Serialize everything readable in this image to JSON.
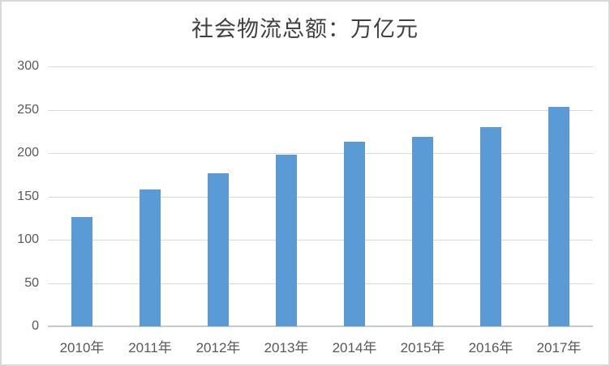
{
  "chart_data": {
    "type": "bar",
    "title": "社会物流总额：万亿元",
    "categories": [
      "2010年",
      "2011年",
      "2012年",
      "2013年",
      "2014年",
      "2015年",
      "2016年",
      "2017年"
    ],
    "values": [
      126,
      158,
      177,
      198,
      213,
      219,
      230,
      253
    ],
    "xlabel": "",
    "ylabel": "",
    "ylim": [
      0,
      300
    ],
    "yticks": [
      0,
      50,
      100,
      150,
      200,
      250,
      300
    ],
    "grid": "horizontal",
    "legend_position": "none"
  },
  "colors": {
    "bar": "#5b9bd5",
    "gridline": "#d9d9d9",
    "baseline": "#c9c9c9",
    "axis_text": "#595959",
    "title_text": "#404040",
    "border": "#d9d9d9",
    "background": "#ffffff"
  }
}
